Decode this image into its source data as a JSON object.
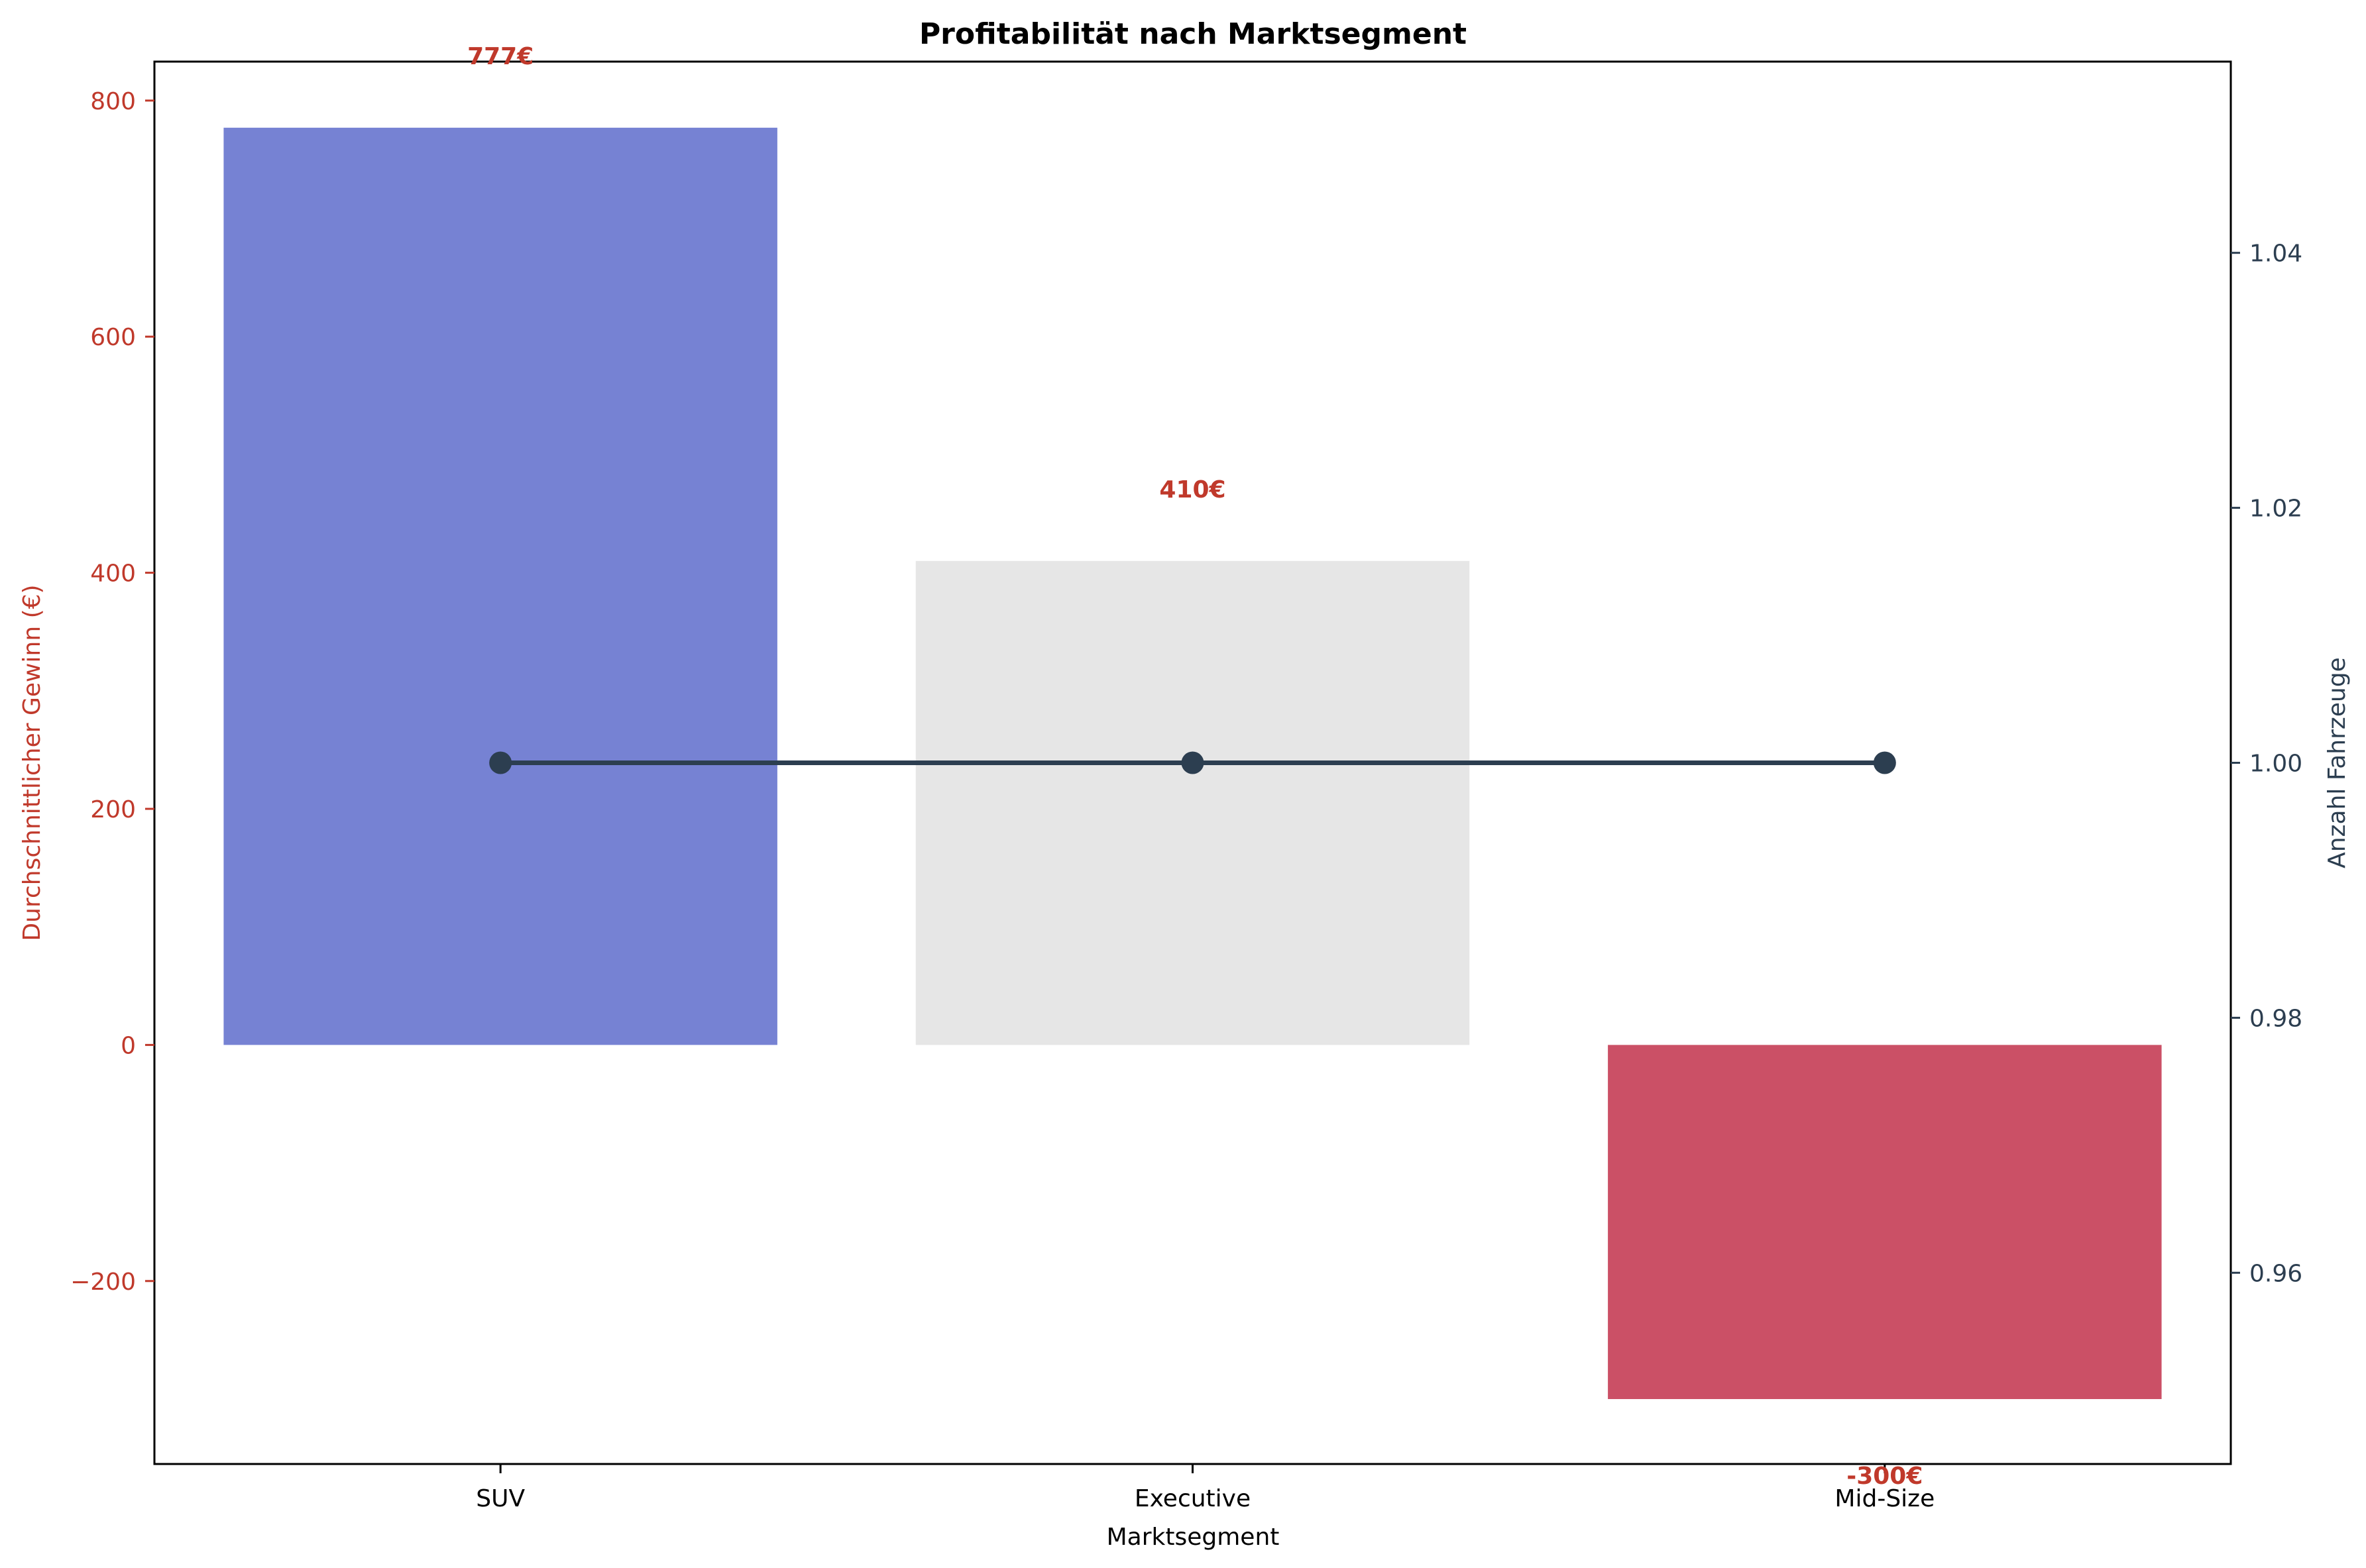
{
  "chart_data": {
    "type": "bar",
    "title": "Profitabilität nach Marktsegment",
    "xlabel": "Marktsegment",
    "ylabel": "Durchschnittlicher Gewinn (€)",
    "y2label": "Anzahl Fahrzeuge",
    "categories": [
      "SUV",
      "Executive",
      "Mid-Size"
    ],
    "series": [
      {
        "name": "",
        "type": "bar",
        "axis": "left",
        "values": [
          777,
          410,
          -300
        ],
        "labels": [
          "777€",
          "410€",
          "-300€"
        ],
        "colors": [
          "#7682d3",
          "#e6e6e6",
          "#cb5066"
        ]
      },
      {
        "name": "",
        "type": "line",
        "axis": "right",
        "values": [
          1,
          1,
          1
        ],
        "color": "#2c3e50"
      }
    ],
    "ylim": [
      -355,
      833
    ],
    "y2lim": [
      0.945,
      1.055
    ],
    "yticks": [
      -200,
      0,
      200,
      400,
      600,
      800
    ],
    "yticklabels": [
      "−200",
      "0",
      "200",
      "400",
      "600",
      "800"
    ],
    "y2ticks": [
      0.96,
      0.98,
      1.0,
      1.02,
      1.04
    ],
    "y2ticklabels": [
      "0.96",
      "0.98",
      "1.00",
      "1.02",
      "1.04"
    ],
    "grid": false,
    "left_axis_color": "#c0392b",
    "right_axis_color": "#2c3e50",
    "label_color": "#c0392b"
  }
}
